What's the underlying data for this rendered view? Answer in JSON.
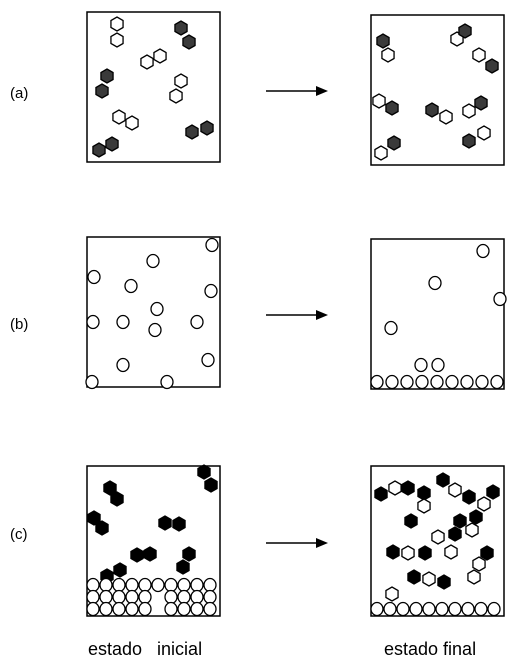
{
  "rows": [
    {
      "label": "(a)",
      "panels": [
        {
          "particles": [
            {
              "t": "w",
              "x": 30,
              "y": 12
            },
            {
              "t": "w",
              "x": 30,
              "y": 28
            },
            {
              "t": "h",
              "x": 94,
              "y": 16
            },
            {
              "t": "h",
              "x": 102,
              "y": 30
            },
            {
              "t": "h",
              "x": 20,
              "y": 64
            },
            {
              "t": "h",
              "x": 15,
              "y": 79
            },
            {
              "t": "w",
              "x": 60,
              "y": 50
            },
            {
              "t": "w",
              "x": 73,
              "y": 44
            },
            {
              "t": "w",
              "x": 94,
              "y": 69
            },
            {
              "t": "w",
              "x": 89,
              "y": 84
            },
            {
              "t": "w",
              "x": 32,
              "y": 105
            },
            {
              "t": "w",
              "x": 45,
              "y": 111
            },
            {
              "t": "h",
              "x": 25,
              "y": 132
            },
            {
              "t": "h",
              "x": 12,
              "y": 138
            },
            {
              "t": "h",
              "x": 105,
              "y": 120
            },
            {
              "t": "h",
              "x": 120,
              "y": 116
            }
          ]
        },
        {
          "particles": [
            {
              "t": "h",
              "x": 12,
              "y": 26
            },
            {
              "t": "w",
              "x": 17,
              "y": 40
            },
            {
              "t": "w",
              "x": 86,
              "y": 24
            },
            {
              "t": "h",
              "x": 94,
              "y": 16
            },
            {
              "t": "w",
              "x": 108,
              "y": 40
            },
            {
              "t": "h",
              "x": 121,
              "y": 51
            },
            {
              "t": "w",
              "x": 8,
              "y": 86
            },
            {
              "t": "h",
              "x": 21,
              "y": 93
            },
            {
              "t": "h",
              "x": 61,
              "y": 95
            },
            {
              "t": "w",
              "x": 75,
              "y": 102
            },
            {
              "t": "w",
              "x": 98,
              "y": 96
            },
            {
              "t": "h",
              "x": 110,
              "y": 88
            },
            {
              "t": "w",
              "x": 10,
              "y": 138
            },
            {
              "t": "h",
              "x": 23,
              "y": 128
            },
            {
              "t": "h",
              "x": 98,
              "y": 126
            },
            {
              "t": "w",
              "x": 113,
              "y": 118
            }
          ]
        }
      ]
    },
    {
      "label": "(b)",
      "panels": [
        {
          "particles": [
            {
              "t": "o",
              "x": 125,
              "y": 8
            },
            {
              "t": "o",
              "x": 66,
              "y": 24
            },
            {
              "t": "o",
              "x": 7,
              "y": 40
            },
            {
              "t": "o",
              "x": 44,
              "y": 49
            },
            {
              "t": "o",
              "x": 124,
              "y": 54
            },
            {
              "t": "o",
              "x": 70,
              "y": 72
            },
            {
              "t": "o",
              "x": 6,
              "y": 85
            },
            {
              "t": "o",
              "x": 36,
              "y": 85
            },
            {
              "t": "o",
              "x": 68,
              "y": 93
            },
            {
              "t": "o",
              "x": 110,
              "y": 85
            },
            {
              "t": "o",
              "x": 36,
              "y": 128
            },
            {
              "t": "o",
              "x": 121,
              "y": 123
            },
            {
              "t": "o",
              "x": 5,
              "y": 145
            },
            {
              "t": "o",
              "x": 80,
              "y": 145
            }
          ]
        },
        {
          "particles": [
            {
              "t": "o",
              "x": 112,
              "y": 12
            },
            {
              "t": "o",
              "x": 64,
              "y": 44
            },
            {
              "t": "o",
              "x": 129,
              "y": 60
            },
            {
              "t": "o",
              "x": 20,
              "y": 89
            },
            {
              "t": "o",
              "x": 50,
              "y": 126
            },
            {
              "t": "o",
              "x": 67,
              "y": 126
            },
            {
              "t": "o",
              "x": 6,
              "y": 143
            },
            {
              "t": "o",
              "x": 21,
              "y": 143
            },
            {
              "t": "o",
              "x": 36,
              "y": 143
            },
            {
              "t": "o",
              "x": 51,
              "y": 143
            },
            {
              "t": "o",
              "x": 66,
              "y": 143
            },
            {
              "t": "o",
              "x": 81,
              "y": 143
            },
            {
              "t": "o",
              "x": 96,
              "y": 143
            },
            {
              "t": "o",
              "x": 111,
              "y": 143
            },
            {
              "t": "o",
              "x": 126,
              "y": 143
            }
          ]
        }
      ]
    },
    {
      "label": "(c)",
      "panels": [
        {
          "particles": [
            {
              "t": "b",
              "x": 117,
              "y": 6
            },
            {
              "t": "b",
              "x": 124,
              "y": 19
            },
            {
              "t": "b",
              "x": 23,
              "y": 22
            },
            {
              "t": "b",
              "x": 30,
              "y": 33
            },
            {
              "t": "b",
              "x": 7,
              "y": 52
            },
            {
              "t": "b",
              "x": 15,
              "y": 62
            },
            {
              "t": "b",
              "x": 78,
              "y": 57
            },
            {
              "t": "b",
              "x": 92,
              "y": 58
            },
            {
              "t": "b",
              "x": 50,
              "y": 89
            },
            {
              "t": "b",
              "x": 63,
              "y": 88
            },
            {
              "t": "b",
              "x": 102,
              "y": 88
            },
            {
              "t": "b",
              "x": 96,
              "y": 101
            },
            {
              "t": "b",
              "x": 33,
              "y": 104
            },
            {
              "t": "b",
              "x": 20,
              "y": 110
            },
            {
              "t": "o",
              "x": 6,
              "y": 119
            },
            {
              "t": "o",
              "x": 19,
              "y": 119
            },
            {
              "t": "o",
              "x": 32,
              "y": 119
            },
            {
              "t": "o",
              "x": 45,
              "y": 119
            },
            {
              "t": "o",
              "x": 58,
              "y": 119
            },
            {
              "t": "o",
              "x": 71,
              "y": 119
            },
            {
              "t": "o",
              "x": 84,
              "y": 119
            },
            {
              "t": "o",
              "x": 97,
              "y": 119
            },
            {
              "t": "o",
              "x": 110,
              "y": 119
            },
            {
              "t": "o",
              "x": 123,
              "y": 119
            },
            {
              "t": "o",
              "x": 6,
              "y": 131
            },
            {
              "t": "o",
              "x": 19,
              "y": 131
            },
            {
              "t": "o",
              "x": 32,
              "y": 131
            },
            {
              "t": "o",
              "x": 45,
              "y": 131
            },
            {
              "t": "o",
              "x": 58,
              "y": 131
            },
            {
              "t": "o",
              "x": 84,
              "y": 131
            },
            {
              "t": "o",
              "x": 97,
              "y": 131
            },
            {
              "t": "o",
              "x": 110,
              "y": 131
            },
            {
              "t": "o",
              "x": 123,
              "y": 131
            },
            {
              "t": "o",
              "x": 6,
              "y": 143
            },
            {
              "t": "o",
              "x": 19,
              "y": 143
            },
            {
              "t": "o",
              "x": 32,
              "y": 143
            },
            {
              "t": "o",
              "x": 45,
              "y": 143
            },
            {
              "t": "o",
              "x": 58,
              "y": 143
            },
            {
              "t": "o",
              "x": 84,
              "y": 143
            },
            {
              "t": "o",
              "x": 97,
              "y": 143
            },
            {
              "t": "o",
              "x": 110,
              "y": 143
            },
            {
              "t": "o",
              "x": 123,
              "y": 143
            }
          ]
        },
        {
          "particles": [
            {
              "t": "b",
              "x": 10,
              "y": 28
            },
            {
              "t": "w",
              "x": 24,
              "y": 22
            },
            {
              "t": "b",
              "x": 37,
              "y": 22
            },
            {
              "t": "b",
              "x": 53,
              "y": 27
            },
            {
              "t": "w",
              "x": 53,
              "y": 40
            },
            {
              "t": "b",
              "x": 72,
              "y": 14
            },
            {
              "t": "w",
              "x": 84,
              "y": 24
            },
            {
              "t": "b",
              "x": 98,
              "y": 31
            },
            {
              "t": "w",
              "x": 113,
              "y": 38
            },
            {
              "t": "b",
              "x": 122,
              "y": 26
            },
            {
              "t": "b",
              "x": 40,
              "y": 55
            },
            {
              "t": "b",
              "x": 89,
              "y": 55
            },
            {
              "t": "b",
              "x": 105,
              "y": 51
            },
            {
              "t": "w",
              "x": 101,
              "y": 64
            },
            {
              "t": "b",
              "x": 84,
              "y": 68
            },
            {
              "t": "w",
              "x": 67,
              "y": 71
            },
            {
              "t": "b",
              "x": 22,
              "y": 86
            },
            {
              "t": "w",
              "x": 37,
              "y": 87
            },
            {
              "t": "b",
              "x": 54,
              "y": 87
            },
            {
              "t": "w",
              "x": 80,
              "y": 86
            },
            {
              "t": "b",
              "x": 116,
              "y": 87
            },
            {
              "t": "w",
              "x": 108,
              "y": 98
            },
            {
              "t": "w",
              "x": 103,
              "y": 111
            },
            {
              "t": "b",
              "x": 43,
              "y": 111
            },
            {
              "t": "w",
              "x": 58,
              "y": 113
            },
            {
              "t": "b",
              "x": 73,
              "y": 116
            },
            {
              "t": "w",
              "x": 21,
              "y": 128
            },
            {
              "t": "o",
              "x": 6,
              "y": 143
            },
            {
              "t": "o",
              "x": 19,
              "y": 143
            },
            {
              "t": "o",
              "x": 32,
              "y": 143
            },
            {
              "t": "o",
              "x": 45,
              "y": 143
            },
            {
              "t": "o",
              "x": 58,
              "y": 143
            },
            {
              "t": "o",
              "x": 71,
              "y": 143
            },
            {
              "t": "o",
              "x": 84,
              "y": 143
            },
            {
              "t": "o",
              "x": 97,
              "y": 143
            },
            {
              "t": "o",
              "x": 110,
              "y": 143
            },
            {
              "t": "o",
              "x": 123,
              "y": 143
            }
          ]
        }
      ]
    }
  ],
  "captions": {
    "initial": "estado   inicial",
    "final": "estado final"
  },
  "colors": {
    "stroke": "#000000",
    "dark_fill": "#3a3a3a",
    "black_fill": "#000000",
    "white_fill": "#ffffff"
  }
}
